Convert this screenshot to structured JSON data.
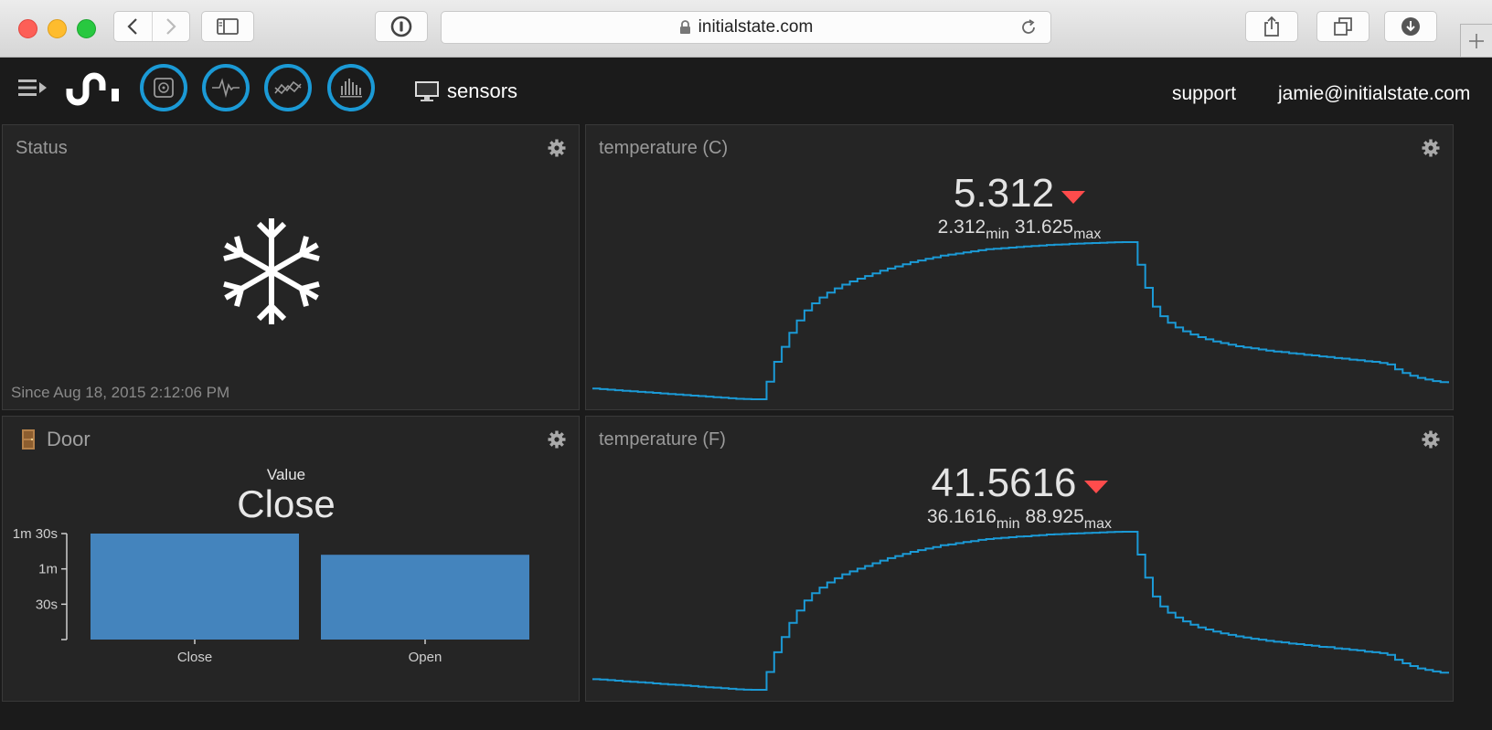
{
  "browser": {
    "url": "initialstate.com"
  },
  "header": {
    "bucket_name": "sensors",
    "support_link": "support",
    "user_email": "jamie@initialstate.com"
  },
  "tiles": {
    "status": {
      "title": "Status",
      "icon": "snowflake-icon",
      "since": "Since Aug 18, 2015 2:12:06 PM"
    },
    "door": {
      "title": "Door",
      "caption": "Value",
      "value": "Close",
      "chart_data": {
        "type": "bar",
        "categories": [
          "Close",
          "Open"
        ],
        "values": [
          90,
          72
        ],
        "y_ticks": [
          {
            "value": 30,
            "label": "30s"
          },
          {
            "value": 60,
            "label": "1m"
          },
          {
            "value": 90,
            "label": "1m 30s"
          }
        ],
        "ylim": [
          0,
          90
        ],
        "color": "#4484bd"
      }
    },
    "temp_c": {
      "title": "temperature (C)",
      "value": "5.312",
      "min": "2.312",
      "min_label": "min",
      "max": "31.625",
      "max_label": "max",
      "trend": "down",
      "chart_data": {
        "type": "line",
        "interpolation": "step",
        "color": "#1b9ad6",
        "ylim": [
          2.312,
          31.625
        ],
        "values": [
          4.3,
          4.2,
          4.1,
          4.0,
          3.9,
          3.8,
          3.7,
          3.6,
          3.5,
          3.4,
          3.3,
          3.2,
          3.1,
          3.0,
          2.9,
          2.8,
          2.7,
          2.6,
          2.5,
          2.4,
          2.35,
          2.312,
          2.312,
          5.6,
          9.3,
          12.1,
          14.7,
          17.0,
          18.9,
          20.2,
          21.3,
          22.2,
          23.0,
          23.7,
          24.3,
          24.8,
          25.3,
          25.8,
          26.3,
          26.7,
          27.1,
          27.5,
          27.9,
          28.2,
          28.5,
          28.8,
          29.1,
          29.3,
          29.5,
          29.7,
          29.9,
          30.1,
          30.3,
          30.4,
          30.5,
          30.6,
          30.7,
          30.8,
          30.9,
          31.0,
          31.1,
          31.15,
          31.2,
          31.3,
          31.35,
          31.4,
          31.45,
          31.5,
          31.55,
          31.6,
          31.625,
          31.625,
          27.4,
          23.1,
          19.6,
          17.8,
          16.6,
          15.7,
          15.0,
          14.4,
          13.9,
          13.5,
          13.1,
          12.8,
          12.5,
          12.2,
          12.0,
          11.8,
          11.6,
          11.4,
          11.2,
          11.1,
          10.9,
          10.8,
          10.6,
          10.5,
          10.3,
          10.2,
          10.0,
          9.9,
          9.7,
          9.6,
          9.4,
          9.3,
          9.1,
          8.8,
          7.9,
          7.2,
          6.7,
          6.3,
          6.0,
          5.7,
          5.5,
          5.312
        ]
      }
    },
    "temp_f": {
      "title": "temperature (F)",
      "value": "41.5616",
      "min": "36.1616",
      "min_label": "min",
      "max": "88.925",
      "max_label": "max",
      "trend": "down",
      "chart_data": {
        "type": "line",
        "interpolation": "step",
        "color": "#1b9ad6",
        "ylim": [
          36.1616,
          88.925
        ],
        "values": [
          39.7,
          39.6,
          39.4,
          39.2,
          39.0,
          38.8,
          38.7,
          38.5,
          38.3,
          38.1,
          37.9,
          37.8,
          37.6,
          37.4,
          37.2,
          37.0,
          36.9,
          36.7,
          36.5,
          36.3,
          36.2,
          36.1616,
          36.1616,
          42.1,
          48.7,
          53.8,
          58.5,
          62.6,
          66.0,
          68.4,
          70.3,
          72.0,
          73.4,
          74.7,
          75.7,
          76.6,
          77.5,
          78.4,
          79.3,
          80.1,
          80.8,
          81.5,
          82.2,
          82.8,
          83.3,
          83.8,
          84.4,
          84.7,
          85.1,
          85.5,
          85.8,
          86.2,
          86.5,
          86.7,
          86.9,
          87.1,
          87.3,
          87.4,
          87.6,
          87.8,
          88.0,
          88.1,
          88.2,
          88.3,
          88.4,
          88.5,
          88.6,
          88.7,
          88.8,
          88.9,
          88.925,
          88.925,
          81.3,
          73.6,
          67.3,
          64.0,
          61.9,
          60.3,
          59.0,
          57.9,
          57.0,
          56.3,
          55.6,
          55.0,
          54.5,
          54.0,
          53.6,
          53.2,
          52.9,
          52.5,
          52.2,
          52.0,
          51.6,
          51.4,
          51.1,
          50.9,
          50.5,
          50.4,
          50.0,
          49.8,
          49.5,
          49.3,
          48.9,
          48.7,
          48.4,
          47.8,
          46.2,
          45.0,
          44.1,
          43.3,
          42.8,
          42.3,
          41.9,
          41.5616
        ]
      }
    }
  }
}
